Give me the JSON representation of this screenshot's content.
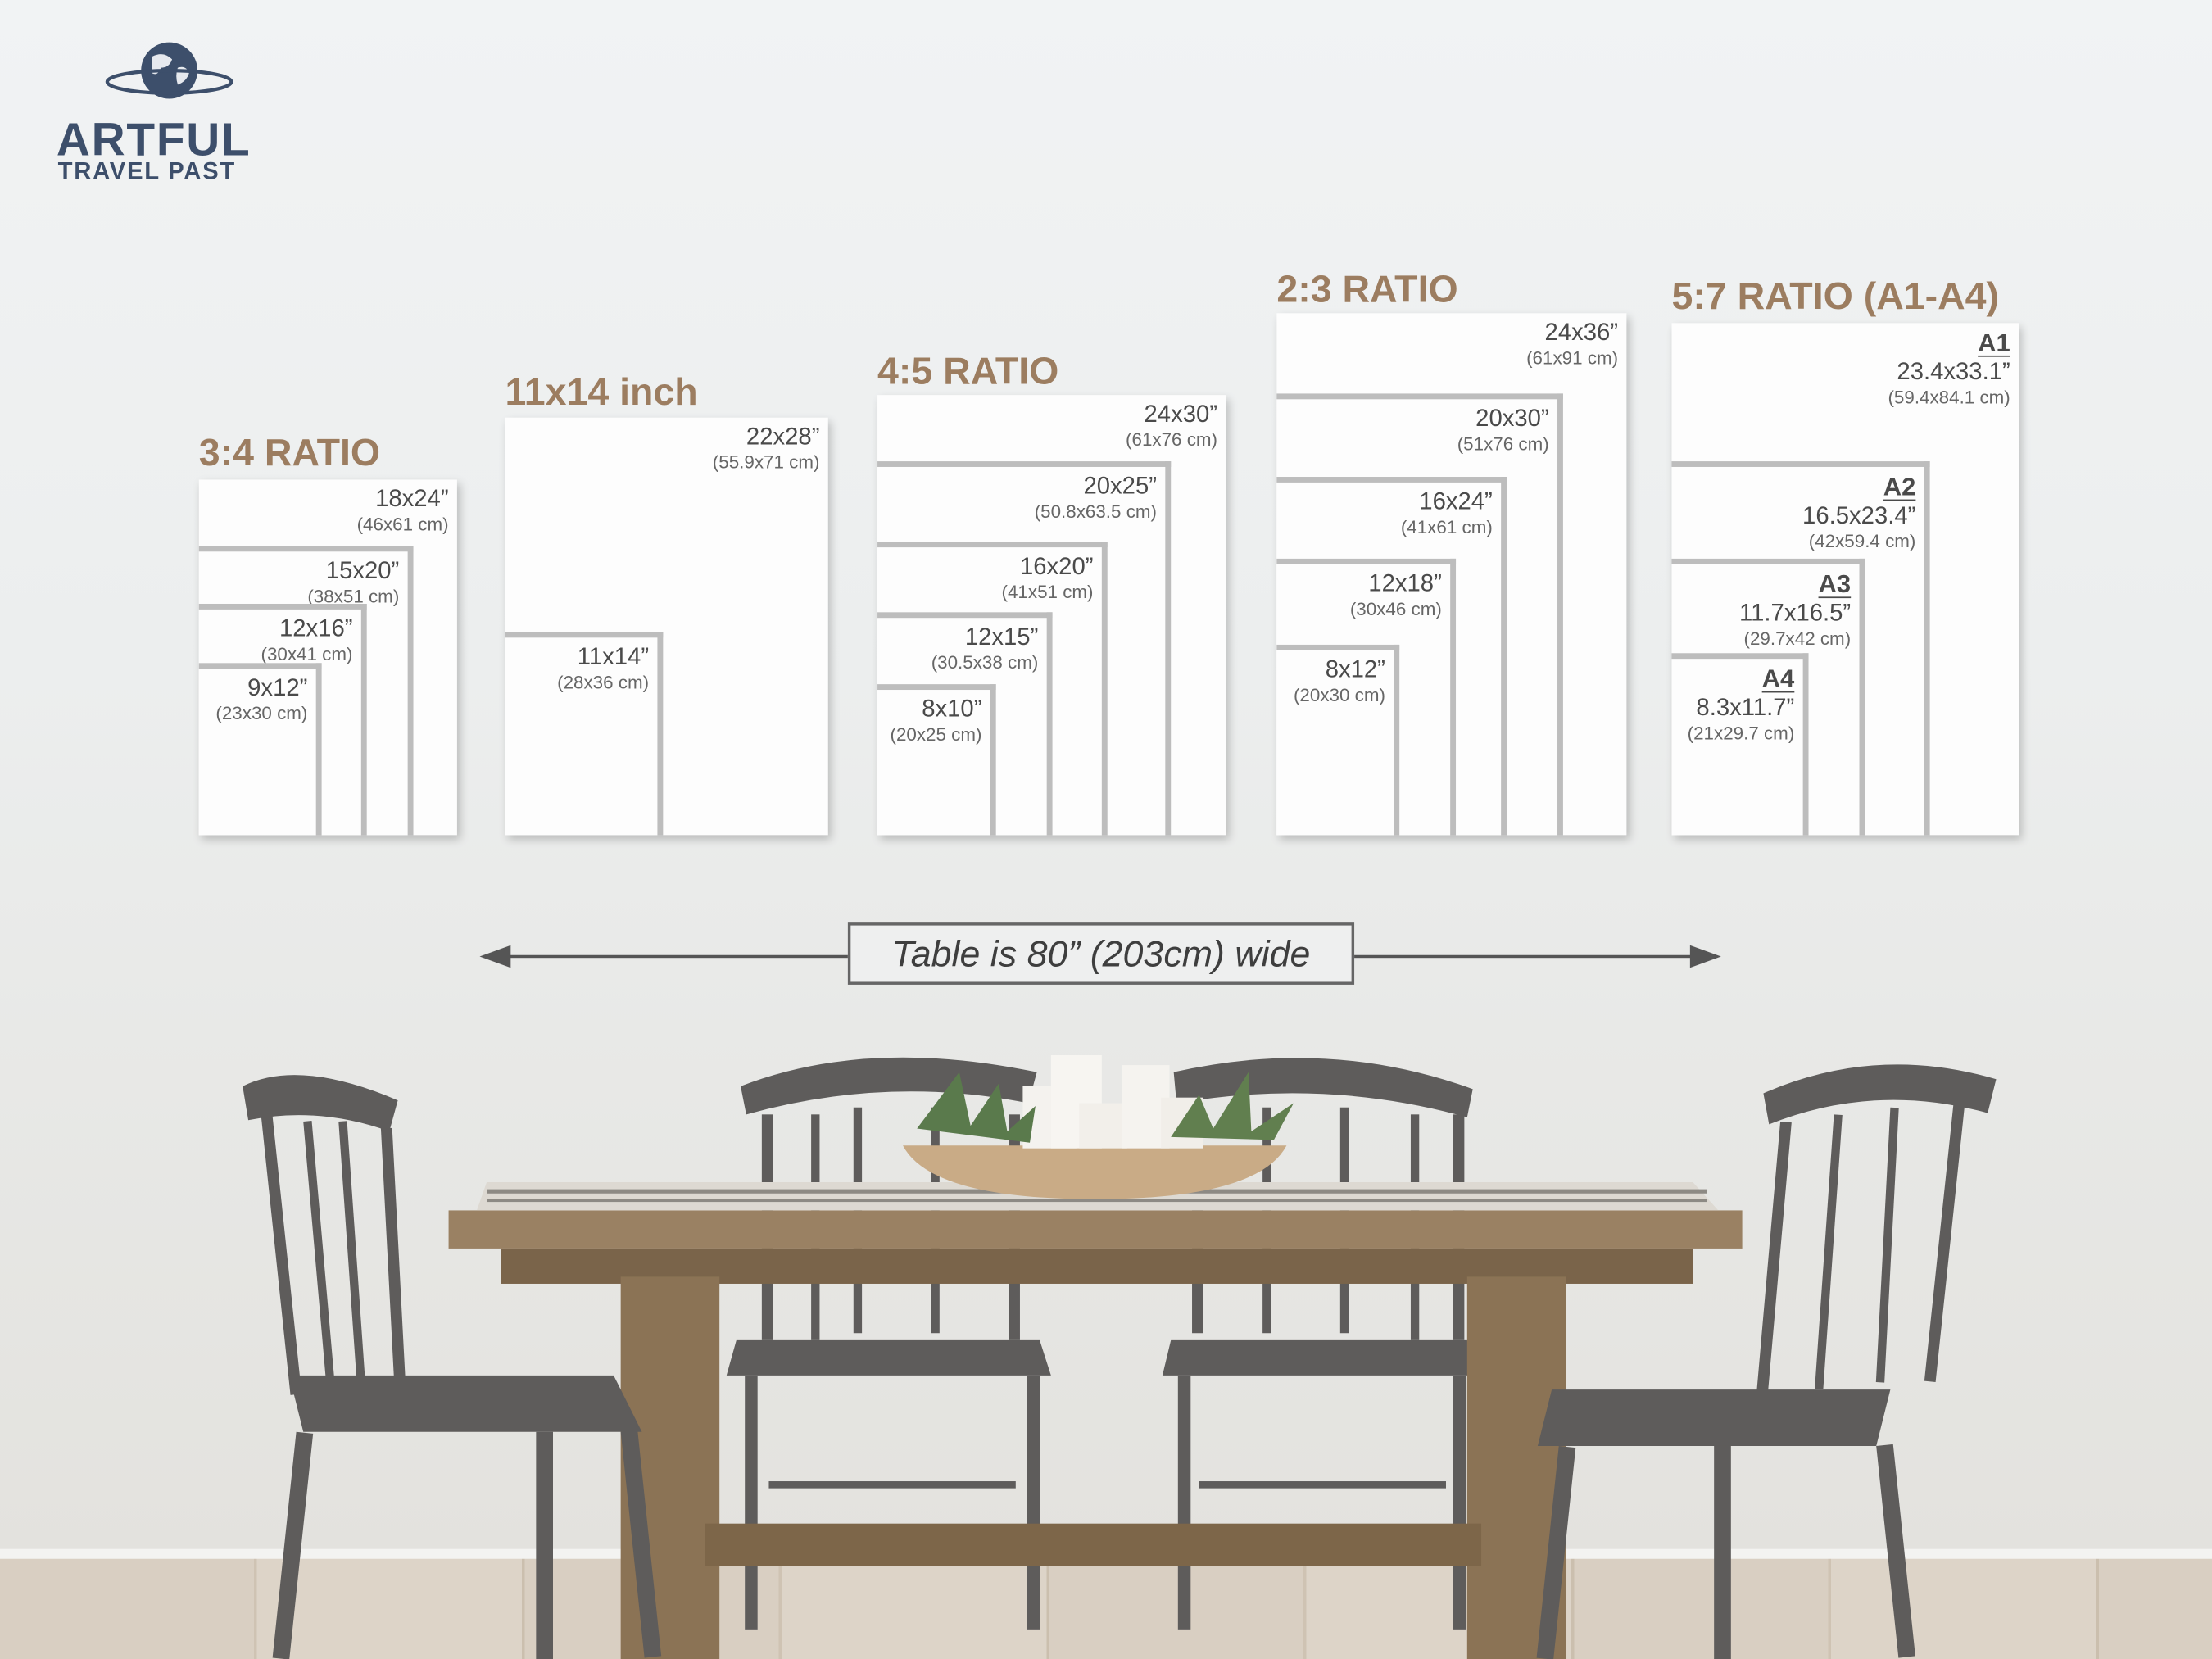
{
  "logo": {
    "word": "ARTFUL",
    "sub": "TRAVEL PAST",
    "icon": "globe-icon",
    "color": "#3d4f6b"
  },
  "title_color": "#9c7d60",
  "groups": [
    {
      "title": "3:4 RATIO",
      "frames": [
        {
          "size": "18x24”",
          "cm": "(46x61 cm)"
        },
        {
          "size": "15x20”",
          "cm": "(38x51 cm)"
        },
        {
          "size": "12x16”",
          "cm": "(30x41 cm)"
        },
        {
          "size": "9x12”",
          "cm": "(23x30 cm)"
        }
      ]
    },
    {
      "title": "11x14 inch",
      "frames": [
        {
          "size": "22x28”",
          "cm": "(55.9x71 cm)"
        },
        {
          "size": "11x14”",
          "cm": "(28x36 cm)"
        }
      ]
    },
    {
      "title": "4:5 RATIO",
      "frames": [
        {
          "size": "24x30”",
          "cm": "(61x76 cm)"
        },
        {
          "size": "20x25”",
          "cm": "(50.8x63.5 cm)"
        },
        {
          "size": "16x20”",
          "cm": "(41x51 cm)"
        },
        {
          "size": "12x15”",
          "cm": "(30.5x38 cm)"
        },
        {
          "size": "8x10”",
          "cm": "(20x25 cm)"
        }
      ]
    },
    {
      "title": "2:3 RATIO",
      "frames": [
        {
          "size": "24x36”",
          "cm": "(61x91 cm)"
        },
        {
          "size": "20x30”",
          "cm": "(51x76 cm)"
        },
        {
          "size": "16x24”",
          "cm": "(41x61 cm)"
        },
        {
          "size": "12x18”",
          "cm": "(30x46 cm)"
        },
        {
          "size": "8x12”",
          "cm": "(20x30 cm)"
        }
      ]
    },
    {
      "title": "5:7 RATIO (A1-A4)",
      "frames": [
        {
          "paper": "A1",
          "size": "23.4x33.1”",
          "cm": "(59.4x84.1 cm)"
        },
        {
          "paper": "A2",
          "size": "16.5x23.4”",
          "cm": "(42x59.4 cm)"
        },
        {
          "paper": "A3",
          "size": "11.7x16.5”",
          "cm": "(29.7x42 cm)"
        },
        {
          "paper": "A4",
          "size": "8.3x11.7”",
          "cm": "(21x29.7 cm)"
        }
      ]
    }
  ],
  "table_note": "Table is 80” (203cm) wide"
}
